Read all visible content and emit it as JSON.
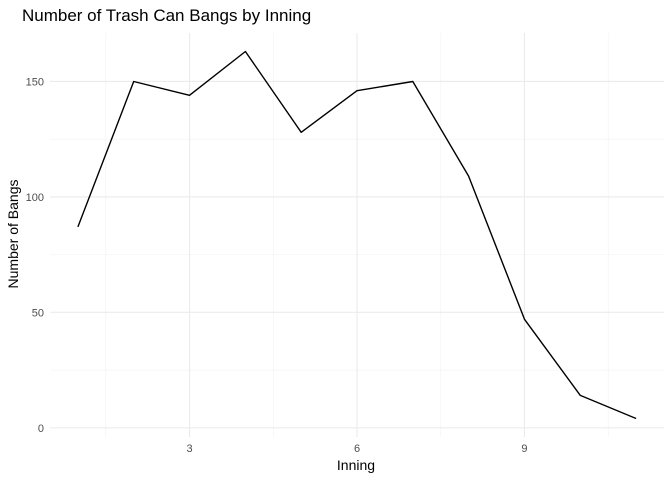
{
  "chart_data": {
    "type": "line",
    "title": "Number of Trash Can Bangs by Inning",
    "xlabel": "Inning",
    "ylabel": "Number of Bangs",
    "x": [
      1,
      2,
      3,
      4,
      5,
      6,
      7,
      8,
      9,
      10,
      11
    ],
    "series": [
      {
        "values": [
          87,
          150,
          144,
          163,
          128,
          146,
          150,
          109,
          47,
          14,
          4
        ]
      }
    ],
    "xlim": [
      0.5,
      11.5
    ],
    "ylim": [
      -4.0,
      171.0
    ],
    "x_ticks": [
      3,
      6,
      9
    ],
    "x_tick_labels": [
      "3",
      "6",
      "9"
    ],
    "y_ticks": [
      0,
      50,
      100,
      150
    ],
    "y_tick_labels": [
      "0",
      "50",
      "100",
      "150"
    ],
    "grid": true,
    "legend": "none",
    "line_color": "#000000"
  }
}
